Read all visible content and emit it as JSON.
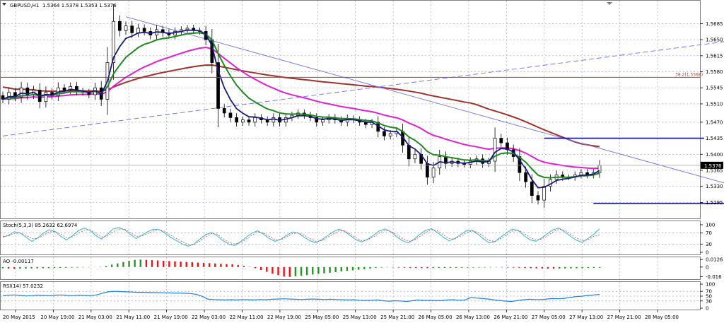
{
  "chart_data": {
    "type": "candlestick",
    "header": {
      "symbol_label": "GBPUSD,H1",
      "ohlc_label": "1.5364 1.5378 1.5353 1.5376"
    },
    "x_tick_labels": [
      "20 May 2015",
      "20 May 19:00",
      "21 May 03:00",
      "21 May 11:00",
      "21 May 19:00",
      "22 May 03:00",
      "22 May 11:00",
      "22 May 19:00",
      "25 May 05:00",
      "25 May 13:00",
      "25 May 21:00",
      "26 May 05:00",
      "26 May 13:00",
      "26 May 21:00",
      "27 May 05:00",
      "27 May 13:00",
      "27 May 21:00",
      "28 May 05:00"
    ],
    "price_ticks": [
      "1.5685",
      "1.5650",
      "1.5615",
      "1.5580",
      "1.5545",
      "1.5510",
      "1.5470",
      "1.5435",
      "1.5400",
      "1.5365",
      "1.5330",
      "1.5295"
    ],
    "price_range": [
      1.5274,
      1.5715
    ],
    "current_price_label": "1.5376",
    "fib_label": "38.2(1.5568)",
    "fib_level": 1.5568,
    "current_price": 1.5376,
    "close_series": [
      1.552,
      1.5535,
      1.5525,
      1.5545,
      1.553,
      1.554,
      1.5515,
      1.5535,
      1.5528,
      1.5545,
      1.554,
      1.5548,
      1.5538,
      1.5535,
      1.553,
      1.5545,
      1.552,
      1.56,
      1.569,
      1.567,
      1.568,
      1.5665,
      1.5675,
      1.5668,
      1.566,
      1.5672,
      1.5665,
      1.566,
      1.5668,
      1.5672,
      1.5675,
      1.567,
      1.5668,
      1.565,
      1.56,
      1.55,
      1.549,
      1.548,
      1.547,
      1.5475,
      1.547,
      1.548,
      1.5475,
      1.547,
      1.548,
      1.547,
      1.548,
      1.5485,
      1.549,
      1.5485,
      1.548,
      1.547,
      1.5475,
      1.548,
      1.5475,
      1.547,
      1.5478,
      1.5475,
      1.547,
      1.5465,
      1.547,
      1.545,
      1.544,
      1.5445,
      1.545,
      1.542,
      1.539,
      1.54,
      1.538,
      1.535,
      1.537,
      1.5395,
      1.538,
      1.5385,
      1.538,
      1.5378,
      1.5385,
      1.539,
      1.538,
      1.5385,
      1.5435,
      1.5425,
      1.541,
      1.5395,
      1.536,
      1.534,
      1.531,
      1.53,
      1.533,
      1.5345,
      1.5355,
      1.535,
      1.535,
      1.5355,
      1.536,
      1.5355,
      1.536,
      1.5376
    ],
    "overlays": [
      {
        "color": "#1a1a7a",
        "role": "fast moving average"
      },
      {
        "color": "#1e8a1e",
        "role": "medium moving average"
      },
      {
        "color": "#e020d0",
        "role": "slow moving average"
      },
      {
        "color": "#a0322a",
        "role": "long moving average"
      }
    ],
    "trendlines": [
      {
        "color": "#6a6aff",
        "style": "dashed",
        "from": {
          "bar": 0,
          "price": 1.544
        },
        "to": {
          "bar": 130,
          "price": 1.5668
        }
      },
      {
        "color": "#7070f0",
        "style": "solid",
        "from": {
          "bar": 20,
          "price": 1.57
        },
        "to": {
          "bar": 130,
          "price": 1.529
        }
      }
    ],
    "horizontal_levels": [
      {
        "color": "#0000ff",
        "price": 1.5435,
        "from_bar": 88,
        "to_bar": 114
      },
      {
        "color": "#0000ff",
        "price": 1.5293,
        "from_bar": 96,
        "to_bar": 118
      }
    ],
    "indicators": [
      {
        "label": "Stoch(5,3,3) 85.2632 62.6974",
        "ticks": [
          "100",
          "70",
          "30",
          "0"
        ],
        "range": [
          0,
          100
        ],
        "levels": [
          70,
          30
        ],
        "main": [
          55,
          62,
          75,
          70,
          55,
          40,
          52,
          70,
          82,
          76,
          58,
          45,
          60,
          78,
          88,
          80,
          62,
          48,
          64,
          84,
          90,
          82,
          65,
          50,
          62,
          75,
          84,
          82,
          70,
          54,
          42,
          30,
          22,
          30,
          48,
          64,
          72,
          60,
          42,
          30,
          25,
          38,
          55,
          70,
          78,
          66,
          50,
          40,
          48,
          62,
          74,
          70,
          55,
          42,
          35,
          45,
          60,
          74,
          84,
          76,
          60,
          45,
          38,
          48,
          62,
          78,
          85,
          74,
          56,
          42,
          34,
          48,
          66,
          80,
          86,
          72,
          55,
          42,
          50,
          64,
          78,
          80,
          66,
          48,
          34,
          40,
          56,
          72,
          84,
          78,
          60,
          45,
          40,
          52,
          68,
          82,
          88,
          74,
          58,
          44,
          36,
          50,
          66,
          85
        ],
        "signal": [
          58,
          60,
          68,
          70,
          62,
          50,
          50,
          62,
          74,
          76,
          66,
          54,
          56,
          68,
          80,
          82,
          70,
          56,
          58,
          74,
          84,
          84,
          72,
          58,
          60,
          68,
          78,
          82,
          76,
          62,
          50,
          38,
          28,
          28,
          40,
          56,
          68,
          66,
          50,
          36,
          30,
          34,
          48,
          62,
          74,
          70,
          58,
          46,
          46,
          56,
          68,
          70,
          62,
          50,
          40,
          42,
          54,
          66,
          78,
          78,
          66,
          52,
          42,
          46,
          56,
          70,
          80,
          76,
          64,
          50,
          40,
          44,
          58,
          72,
          82,
          78,
          64,
          50,
          48,
          58,
          70,
          78,
          72,
          58,
          42,
          40,
          50,
          64,
          78,
          80,
          68,
          54,
          44,
          48,
          60,
          74,
          84,
          80,
          66,
          52,
          42,
          46,
          58,
          62.7
        ]
      },
      {
        "label": "AO -0.00117",
        "ticks": [
          "0.0126",
          "0",
          "-0.016"
        ],
        "range": [
          -0.018,
          0.014
        ],
        "values": [
          -0.002,
          -0.0025,
          -0.003,
          -0.0028,
          -0.0026,
          -0.0024,
          -0.0022,
          -0.002,
          -0.0018,
          -0.0016,
          -0.0014,
          -0.0012,
          -0.001,
          -0.0008,
          -0.0006,
          -0.0004,
          -0.0002,
          0.0005,
          0.002,
          0.004,
          0.006,
          0.0085,
          0.0105,
          0.012,
          0.0125,
          0.012,
          0.0115,
          0.011,
          0.0105,
          0.01,
          0.0095,
          0.009,
          0.0085,
          0.008,
          0.0075,
          0.007,
          0.0065,
          0.006,
          0.0055,
          0.005,
          0.0045,
          0.0035,
          0.002,
          0.0005,
          -0.002,
          -0.005,
          -0.008,
          -0.011,
          -0.0135,
          -0.016,
          -0.0165,
          -0.0155,
          -0.0145,
          -0.0135,
          -0.0125,
          -0.0115,
          -0.0105,
          -0.0095,
          -0.0085,
          -0.0075,
          -0.0065,
          -0.0055,
          -0.0045,
          -0.0035,
          -0.0025,
          -0.0015,
          -0.0008,
          -0.0005,
          -0.0007,
          -0.0009,
          -0.0011,
          -0.0013,
          -0.0015,
          -0.0016,
          -0.0017,
          -0.0016,
          -0.0015,
          -0.0014,
          -0.0013,
          -0.0012,
          -0.0011,
          -0.001,
          -0.0009,
          -0.0008,
          -0.0007,
          -0.0006,
          -0.0005,
          -0.0006,
          -0.0008,
          -0.001,
          -0.0012,
          -0.0015,
          -0.0018,
          -0.0021,
          -0.0024,
          -0.0026,
          -0.0027,
          -0.0026,
          -0.0024,
          -0.0022,
          -0.002,
          -0.0018,
          -0.0016,
          -0.0014,
          -0.0012
        ]
      },
      {
        "label": "RSI(14) 57.0232",
        "ticks": [
          "100",
          "70",
          "50",
          "30",
          "0"
        ],
        "range": [
          0,
          100
        ],
        "levels": [
          70,
          50,
          30
        ],
        "values": [
          52,
          54,
          55,
          53,
          51,
          52,
          54,
          53,
          52,
          54,
          55,
          53,
          52,
          54,
          53,
          52,
          55,
          62,
          68,
          70,
          69,
          68,
          67,
          66,
          66,
          65,
          65,
          64,
          64,
          63,
          63,
          62,
          61,
          58,
          50,
          38,
          36,
          35,
          34,
          35,
          34,
          36,
          35,
          34,
          36,
          35,
          37,
          38,
          39,
          38,
          37,
          36,
          37,
          38,
          37,
          36,
          37,
          36,
          35,
          34,
          35,
          33,
          32,
          33,
          34,
          31,
          29,
          31,
          30,
          28,
          31,
          34,
          32,
          33,
          32,
          32,
          34,
          35,
          33,
          34,
          44,
          42,
          40,
          38,
          34,
          32,
          29,
          28,
          32,
          35,
          37,
          36,
          36,
          38,
          40,
          39,
          41,
          45,
          48,
          50,
          53,
          55,
          57
        ]
      }
    ]
  }
}
